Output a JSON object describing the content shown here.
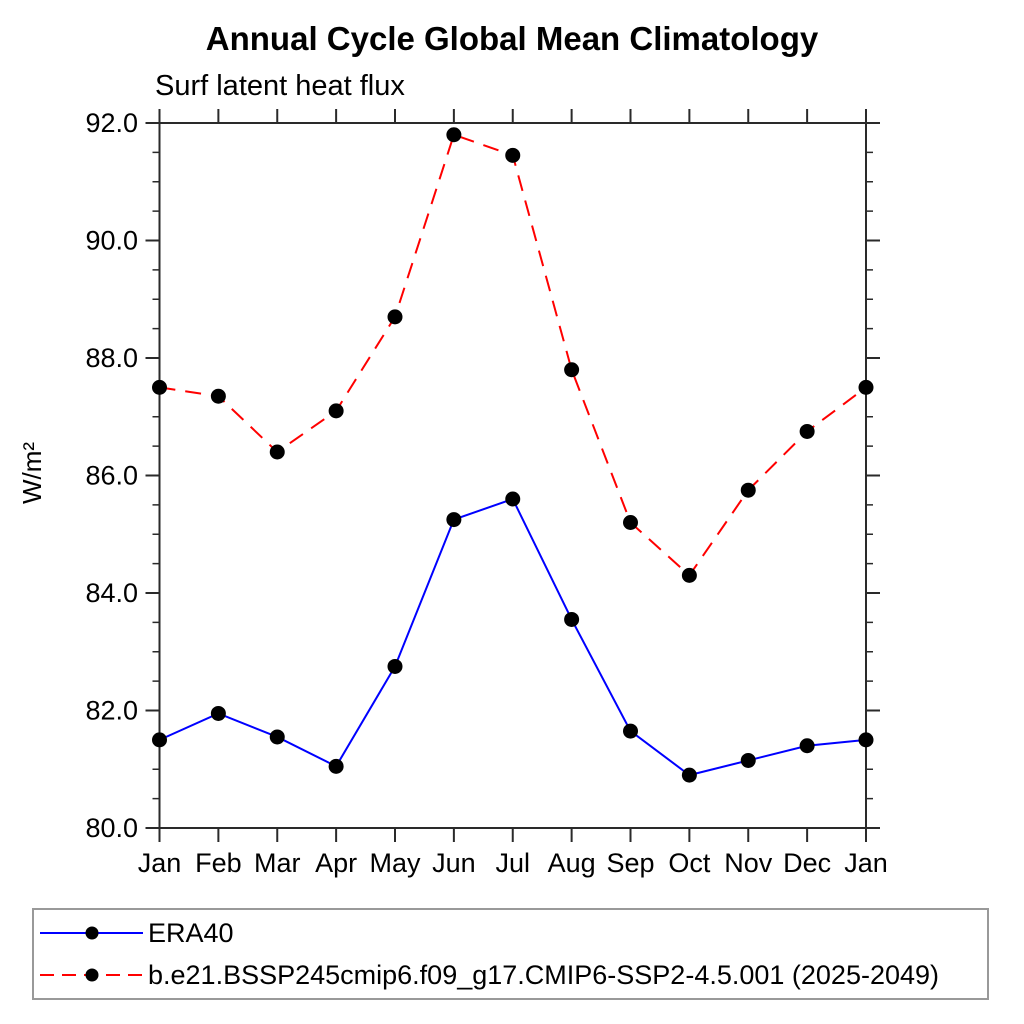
{
  "chart_data": {
    "type": "line",
    "title": "Annual Cycle Global Mean Climatology",
    "subtitle": "Surf latent heat flux",
    "ylabel": "W/m²",
    "xlabel": "",
    "categories": [
      "Jan",
      "Feb",
      "Mar",
      "Apr",
      "May",
      "Jun",
      "Jul",
      "Aug",
      "Sep",
      "Oct",
      "Nov",
      "Dec",
      "Jan"
    ],
    "ylim": [
      80.0,
      92.0
    ],
    "ytick_major": 2.0,
    "ytick_minor": 0.5,
    "ytick_labels": [
      "80.0",
      "82.0",
      "84.0",
      "86.0",
      "88.0",
      "90.0",
      "92.0"
    ],
    "grid": "off",
    "frame": "box-with-outward-ticks",
    "marker": "filled-circle",
    "marker_color": "#000000",
    "legend_position": "bottom-left-box",
    "series": [
      {
        "name": "ERA40",
        "color": "#0000ff",
        "dash": "solid",
        "values": [
          81.5,
          81.95,
          81.55,
          81.05,
          82.75,
          85.25,
          85.6,
          83.55,
          81.65,
          80.9,
          81.15,
          81.4,
          81.5
        ]
      },
      {
        "name": "b.e21.BSSP245cmip6.f09_g17.CMIP6-SSP2-4.5.001 (2025-2049)",
        "color": "#ff0000",
        "dash": "dashed",
        "values": [
          87.5,
          87.35,
          86.4,
          87.1,
          88.7,
          91.8,
          91.45,
          87.8,
          85.2,
          84.3,
          85.75,
          86.75,
          87.5
        ]
      }
    ]
  }
}
